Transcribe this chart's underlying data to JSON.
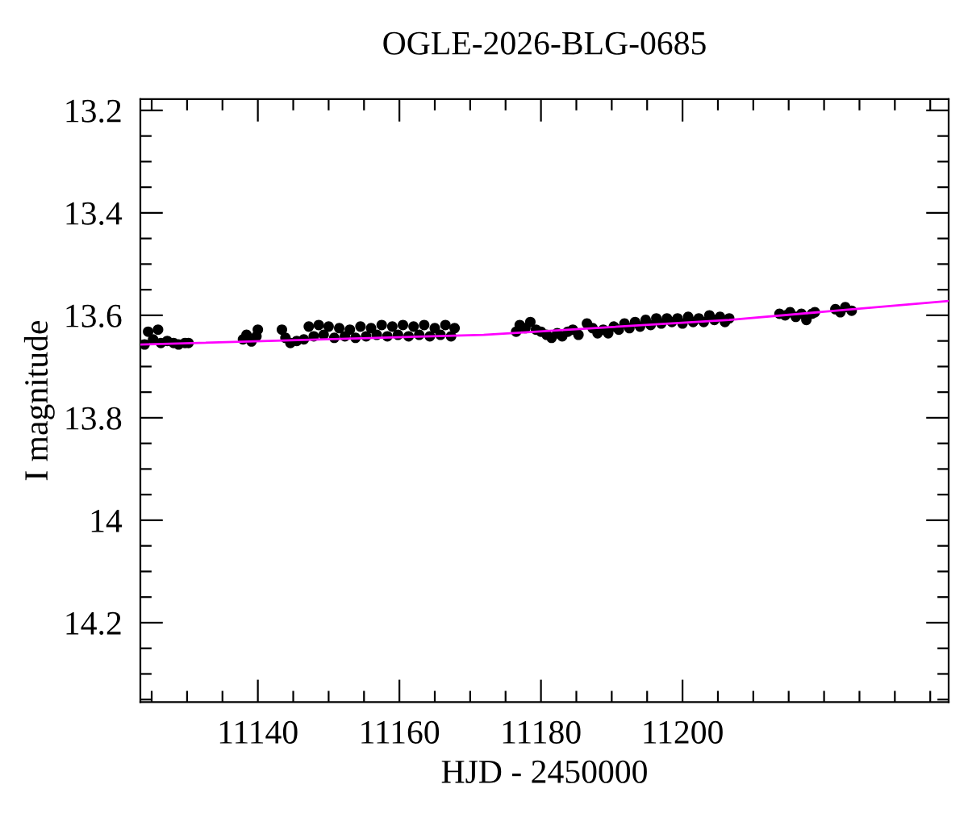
{
  "chart_data": {
    "type": "scatter",
    "title": "OGLE-2026-BLG-0685",
    "xlabel": "HJD - 2450000",
    "ylabel": "I magnitude",
    "xlim": [
      11123.4,
      11237.6
    ],
    "ylim": [
      14.355,
      13.178
    ],
    "xticks": [
      {
        "value": 11125,
        "label": null
      },
      {
        "value": 11130,
        "label": null
      },
      {
        "value": 11135,
        "label": null
      },
      11140,
      {
        "value": 11145,
        "label": null
      },
      {
        "value": 11150,
        "label": null
      },
      {
        "value": 11155,
        "label": null
      },
      11160,
      {
        "value": 11165,
        "label": null
      },
      {
        "value": 11170,
        "label": null
      },
      {
        "value": 11175,
        "label": null
      },
      11180,
      {
        "value": 11185,
        "label": null
      },
      {
        "value": 11190,
        "label": null
      },
      {
        "value": 11195,
        "label": null
      },
      11200,
      {
        "value": 11205,
        "label": null
      },
      {
        "value": 11210,
        "label": null
      },
      {
        "value": 11215,
        "label": null
      },
      {
        "value": 11220,
        "label": null
      },
      {
        "value": 11225,
        "label": null
      },
      {
        "value": 11230,
        "label": null
      },
      {
        "value": 11235,
        "label": null
      }
    ],
    "yticks": [
      {
        "value": 13.2,
        "label": "13.2"
      },
      {
        "value": 13.25,
        "label": null
      },
      {
        "value": 13.3,
        "label": null
      },
      {
        "value": 13.35,
        "label": null
      },
      {
        "value": 13.4,
        "label": "13.4"
      },
      {
        "value": 13.45,
        "label": null
      },
      {
        "value": 13.5,
        "label": null
      },
      {
        "value": 13.55,
        "label": null
      },
      {
        "value": 13.6,
        "label": "13.6"
      },
      {
        "value": 13.65,
        "label": null
      },
      {
        "value": 13.7,
        "label": null
      },
      {
        "value": 13.75,
        "label": null
      },
      {
        "value": 13.8,
        "label": "13.8"
      },
      {
        "value": 13.85,
        "label": null
      },
      {
        "value": 13.9,
        "label": null
      },
      {
        "value": 13.95,
        "label": null
      },
      {
        "value": 14,
        "label": "14"
      },
      {
        "value": 14.05,
        "label": null
      },
      {
        "value": 14.1,
        "label": null
      },
      {
        "value": 14.15,
        "label": null
      },
      {
        "value": 14.2,
        "label": "14.2"
      },
      {
        "value": 14.25,
        "label": null
      },
      {
        "value": 14.3,
        "label": null
      },
      {
        "value": 14.35,
        "label": null
      }
    ],
    "grid": false,
    "legend": false,
    "series": [
      {
        "type": "line",
        "color": "#ff00ff",
        "marker": "none",
        "x": [
          11123.4,
          11171.9,
          11206.6,
          11237.6
        ],
        "values": [
          13.657,
          13.638,
          13.609,
          13.572
        ]
      },
      {
        "color": "#000000",
        "marker": "circle",
        "x": [
          11124.0,
          11124.5,
          11125.2,
          11125.9,
          11126.3,
          11127.2,
          11128.1,
          11128.8,
          11129.7,
          11130.2,
          11137.9,
          11138.4,
          11139.1,
          11139.8,
          11140.0,
          11143.4,
          11143.9,
          11144.6,
          11145.5,
          11146.5,
          11147.2,
          11147.9,
          11148.6,
          11149.3,
          11150.0,
          11150.8,
          11151.5,
          11152.3,
          11153.0,
          11153.8,
          11154.5,
          11155.3,
          11156.0,
          11156.8,
          11157.5,
          11158.3,
          11159.0,
          11159.8,
          11160.5,
          11161.3,
          11162.0,
          11162.8,
          11163.5,
          11164.3,
          11165.0,
          11165.8,
          11166.5,
          11167.3,
          11167.8,
          11176.5,
          11177.0,
          11177.8,
          11178.5,
          11179.3,
          11180.0,
          11180.8,
          11181.5,
          11182.3,
          11183.0,
          11183.8,
          11184.5,
          11185.3,
          11186.5,
          11187.3,
          11188.0,
          11188.8,
          11189.5,
          11190.3,
          11191.0,
          11191.8,
          11192.5,
          11193.3,
          11194.0,
          11194.8,
          11195.5,
          11196.3,
          11197.0,
          11197.8,
          11198.5,
          11199.3,
          11200.0,
          11200.8,
          11201.5,
          11202.3,
          11203.0,
          11203.8,
          11204.5,
          11205.3,
          11206.0,
          11206.6,
          11213.7,
          11214.5,
          11215.2,
          11216.0,
          11216.8,
          11217.5,
          11218.3,
          11218.7,
          11221.6,
          11222.3,
          11223.0,
          11223.9
        ],
        "values": [
          13.657,
          13.632,
          13.647,
          13.628,
          13.654,
          13.65,
          13.654,
          13.657,
          13.654,
          13.654,
          13.647,
          13.638,
          13.651,
          13.641,
          13.628,
          13.628,
          13.644,
          13.654,
          13.65,
          13.647,
          13.622,
          13.641,
          13.619,
          13.638,
          13.622,
          13.644,
          13.625,
          13.641,
          13.628,
          13.644,
          13.622,
          13.641,
          13.625,
          13.638,
          13.619,
          13.641,
          13.622,
          13.638,
          13.619,
          13.641,
          13.622,
          13.638,
          13.619,
          13.641,
          13.625,
          13.638,
          13.619,
          13.641,
          13.625,
          13.632,
          13.619,
          13.625,
          13.613,
          13.628,
          13.632,
          13.638,
          13.644,
          13.635,
          13.641,
          13.632,
          13.628,
          13.638,
          13.616,
          13.625,
          13.635,
          13.628,
          13.635,
          13.622,
          13.628,
          13.616,
          13.625,
          13.613,
          13.622,
          13.609,
          13.619,
          13.606,
          13.616,
          13.606,
          13.613,
          13.606,
          13.616,
          13.603,
          13.613,
          13.606,
          13.613,
          13.6,
          13.609,
          13.603,
          13.613,
          13.606,
          13.597,
          13.6,
          13.594,
          13.603,
          13.597,
          13.609,
          13.597,
          13.594,
          13.588,
          13.594,
          13.584,
          13.591
        ]
      }
    ]
  }
}
